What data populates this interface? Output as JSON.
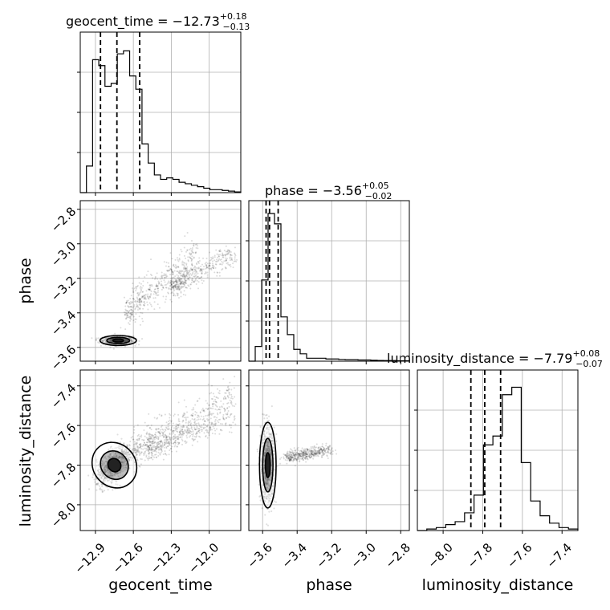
{
  "chart_data": {
    "type": "corner",
    "parameters": [
      "geocent_time",
      "phase",
      "luminosity_distance"
    ],
    "axis_labels": [
      "geocent_time",
      "phase",
      "luminosity_distance"
    ],
    "titles": [
      {
        "param": "geocent_time",
        "text": "geocent_time = −12.73",
        "sup": "+0.18",
        "sub": "−0.13"
      },
      {
        "param": "phase",
        "text": "phase = −3.56",
        "sup": "+0.05",
        "sub": "−0.02"
      },
      {
        "param": "luminosity_distance",
        "text": "luminosity_distance = −7.79",
        "sup": "+0.08",
        "sub": "−0.07"
      }
    ],
    "ranges": {
      "geocent_time": [
        -13.02,
        -11.75
      ],
      "phase": [
        -3.68,
        -2.75
      ],
      "luminosity_distance": [
        -8.13,
        -7.32
      ]
    },
    "ticks": {
      "geocent_time": [
        -12.9,
        -12.6,
        -12.3,
        -12.0
      ],
      "phase": [
        -3.6,
        -3.4,
        -3.2,
        -3.0,
        -2.8
      ],
      "luminosity_distance": [
        -8.0,
        -7.8,
        -7.6,
        -7.4
      ]
    },
    "tick_labels": {
      "geocent_time": [
        "−12.9",
        "−12.6",
        "−12.3",
        "−12.0"
      ],
      "phase": [
        "−3.6",
        "−3.4",
        "−3.2",
        "−3.0",
        "−2.8"
      ],
      "luminosity_distance": [
        "−8.0",
        "−7.8",
        "−7.6",
        "−7.4"
      ]
    },
    "quantiles": {
      "geocent_time": [
        -12.86,
        -12.73,
        -12.55
      ],
      "phase": [
        -3.58,
        -3.56,
        -3.51
      ],
      "luminosity_distance": [
        -7.86,
        -7.79,
        -7.71
      ]
    },
    "histograms": {
      "geocent_time": {
        "edges_range": [
          -13.02,
          -11.75
        ],
        "counts": [
          0.0,
          0.18,
          0.9,
          0.86,
          0.72,
          0.74,
          0.94,
          0.96,
          0.79,
          0.7,
          0.33,
          0.2,
          0.12,
          0.09,
          0.1,
          0.09,
          0.07,
          0.06,
          0.05,
          0.04,
          0.03,
          0.02,
          0.02,
          0.015,
          0.01,
          0.005
        ]
      },
      "phase": {
        "edges_range": [
          -3.68,
          -2.75
        ],
        "counts": [
          0.0,
          0.1,
          0.55,
          1.0,
          0.93,
          0.3,
          0.18,
          0.08,
          0.05,
          0.02,
          0.02,
          0.02,
          0.015,
          0.015,
          0.012,
          0.01,
          0.01,
          0.008,
          0.008,
          0.006,
          0.005,
          0.004,
          0.004,
          0.003,
          0.003
        ]
      },
      "luminosity_distance": {
        "edges_range": [
          -8.13,
          -7.32
        ],
        "counts": [
          0.0,
          0.01,
          0.02,
          0.04,
          0.06,
          0.12,
          0.24,
          0.58,
          0.64,
          0.92,
          0.97,
          0.46,
          0.2,
          0.1,
          0.05,
          0.02,
          0.01
        ]
      }
    },
    "scatter": {
      "phase_vs_geocent_time": {
        "core": [
          -12.72,
          -3.56
        ],
        "branches": [
          [
            -12.65,
            -3.4,
            -12.1,
            -3.05
          ],
          [
            -12.3,
            -3.25,
            -11.8,
            -3.05
          ]
        ]
      },
      "luminosity_distance_vs_geocent_time": {
        "core": [
          -12.75,
          -7.8
        ],
        "branches": [
          [
            -12.6,
            -7.72,
            -11.8,
            -7.45
          ],
          [
            -12.5,
            -7.72,
            -11.8,
            -7.55
          ]
        ]
      },
      "luminosity_distance_vs_phase": {
        "core": [
          -3.57,
          -7.8
        ],
        "branches": [
          [
            -3.45,
            -7.76,
            -3.2,
            -7.72
          ]
        ]
      }
    },
    "grid": true,
    "quantile_lines": "dashed"
  }
}
